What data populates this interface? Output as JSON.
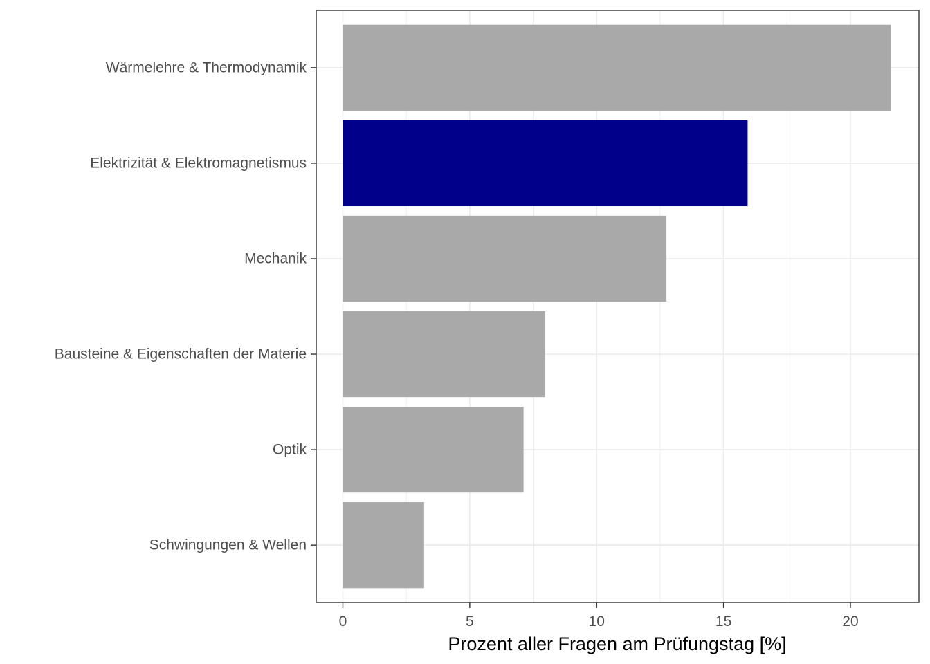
{
  "chart_data": {
    "type": "bar",
    "orientation": "horizontal",
    "categories": [
      "Wärmelehre & Thermodynamik",
      "Elektrizität & Elektromagnetismus",
      "Mechanik",
      "Bausteine & Eigenschaften der Materie",
      "Optik",
      "Schwingungen & Wellen"
    ],
    "values": [
      21.6,
      15.95,
      12.75,
      7.97,
      7.12,
      3.2
    ],
    "highlight_index": 1,
    "colors": {
      "default_bar": "#a9a9a9",
      "highlight_bar": "#00008b",
      "grid": "#ebebeb",
      "panel_border": "#333333",
      "tick_label": "#4d4d4d",
      "axis_title": "#000000"
    },
    "xlim": [
      -1.05,
      22.7
    ],
    "x_ticks": [
      0,
      5,
      10,
      15,
      20
    ],
    "xlabel": "Prozent aller Fragen am Prüfungstag [%]",
    "ylabel": "",
    "title": "",
    "grid": true,
    "legend": "none"
  }
}
